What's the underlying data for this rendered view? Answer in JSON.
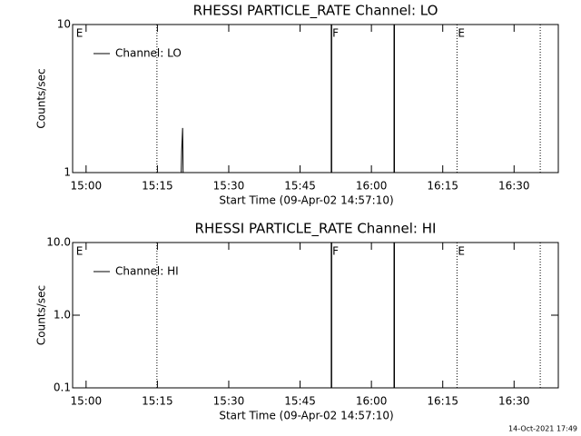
{
  "chart_data": [
    {
      "type": "line",
      "title": "RHESSI PARTICLE_RATE Channel: LO",
      "xlabel": "Start Time (09-Apr-02 14:57:10)",
      "ylabel": "Counts/sec",
      "xlim": [
        897.17,
        999.3
      ],
      "xticks": [
        {
          "value": 900,
          "label": "15:00"
        },
        {
          "value": 915,
          "label": "15:15"
        },
        {
          "value": 930,
          "label": "15:30"
        },
        {
          "value": 945,
          "label": "15:45"
        },
        {
          "value": 960,
          "label": "16:00"
        },
        {
          "value": 975,
          "label": "16:15"
        },
        {
          "value": 990,
          "label": "16:30"
        }
      ],
      "ylim": [
        1,
        10
      ],
      "yticks": [
        1,
        10
      ],
      "log_y": true,
      "series": [
        {
          "name": "Channel: LO",
          "color": "#000000",
          "x": [
            920.0,
            920.1,
            920.3,
            920.4
          ],
          "values": [
            1,
            1.4,
            2,
            1
          ]
        }
      ],
      "vlines": [
        {
          "x": 914.9,
          "style": "dotted"
        },
        {
          "x": 951.6,
          "style": "solid"
        },
        {
          "x": 964.8,
          "style": "solid"
        },
        {
          "x": 978.0,
          "style": "dotted"
        },
        {
          "x": 995.5,
          "style": "dotted"
        }
      ],
      "flags": [
        {
          "x": 897.7,
          "label": "E"
        },
        {
          "x": 951.6,
          "label": "F"
        },
        {
          "x": 978.0,
          "label": "E"
        }
      ]
    },
    {
      "type": "line",
      "title": "RHESSI PARTICLE_RATE Channel: HI",
      "xlabel": "Start Time (09-Apr-02 14:57:10)",
      "ylabel": "Counts/sec",
      "xlim": [
        897.17,
        999.3
      ],
      "xticks": [
        {
          "value": 900,
          "label": "15:00"
        },
        {
          "value": 915,
          "label": "15:15"
        },
        {
          "value": 930,
          "label": "15:30"
        },
        {
          "value": 945,
          "label": "15:45"
        },
        {
          "value": 960,
          "label": "16:00"
        },
        {
          "value": 975,
          "label": "16:15"
        },
        {
          "value": 990,
          "label": "16:30"
        }
      ],
      "ylim": [
        0.1,
        10
      ],
      "yticks": [
        0.1,
        {
          "value": 1,
          "label": "1.0"
        },
        {
          "value": 10,
          "label": "10.0"
        }
      ],
      "log_y": true,
      "series": [
        {
          "name": "Channel: HI",
          "color": "#000000",
          "x": [],
          "values": []
        }
      ],
      "vlines": [
        {
          "x": 914.9,
          "style": "dotted"
        },
        {
          "x": 951.6,
          "style": "solid"
        },
        {
          "x": 964.8,
          "style": "solid"
        },
        {
          "x": 978.0,
          "style": "dotted"
        },
        {
          "x": 995.5,
          "style": "dotted"
        }
      ],
      "flags": [
        {
          "x": 897.7,
          "label": "E"
        },
        {
          "x": 951.6,
          "label": "F"
        },
        {
          "x": 978.0,
          "label": "E"
        }
      ]
    }
  ],
  "footer": "14-Oct-2021 17:49"
}
